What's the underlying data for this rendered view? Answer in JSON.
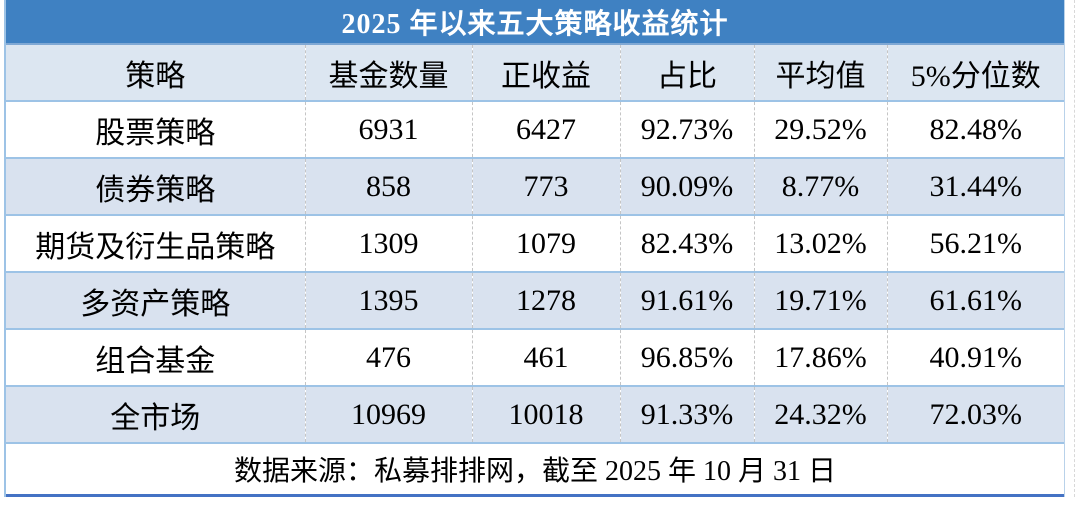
{
  "title": "2025 年以来五大策略收益统计",
  "footer_note": "数据来源：私募排排网，截至 2025 年 10 月 31 日",
  "colors": {
    "title_bar_blue": "#3F81C2",
    "header_row_blue": "#DCE6F1",
    "alt_row_blue": "#D9E2EF",
    "row_border_blue": "#9DC3E6",
    "bottom_border_blue": "#4472C4",
    "column_divider_gray": "#C5C5C5"
  },
  "chart_data": {
    "type": "table",
    "title": "2025 年以来五大策略收益统计",
    "columns": [
      "策略",
      "基金数量",
      "正收益",
      "占比",
      "平均值",
      "5%分位数"
    ],
    "rows": [
      [
        "股票策略",
        "6931",
        "6427",
        "92.73%",
        "29.52%",
        "82.48%"
      ],
      [
        "债券策略",
        "858",
        "773",
        "90.09%",
        "8.77%",
        "31.44%"
      ],
      [
        "期货及衍生品策略",
        "1309",
        "1079",
        "82.43%",
        "13.02%",
        "56.21%"
      ],
      [
        "多资产策略",
        "1395",
        "1278",
        "91.61%",
        "19.71%",
        "61.61%"
      ],
      [
        "组合基金",
        "476",
        "461",
        "96.85%",
        "17.86%",
        "40.91%"
      ],
      [
        "全市场",
        "10969",
        "10018",
        "91.33%",
        "24.32%",
        "72.03%"
      ]
    ],
    "footer": "数据来源：私募排排网，截至 2025 年 10 月 31 日",
    "layout": {
      "striped": true,
      "column_dividers": "dashed",
      "title_position": "top-merged-cell",
      "footer_position": "bottom-merged-cell"
    }
  }
}
